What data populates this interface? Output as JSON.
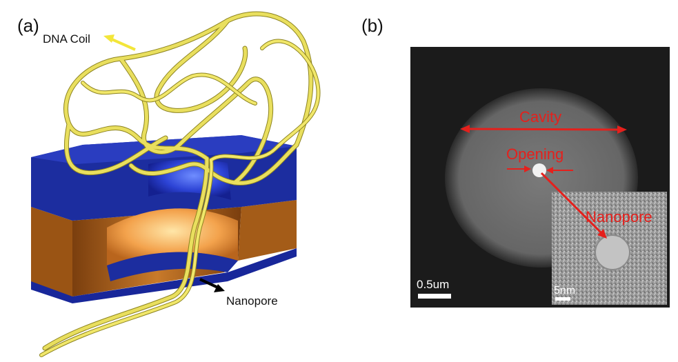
{
  "panel_a": {
    "label": "(a)",
    "dna_coil_label": "DNA Coil",
    "nanopore_label": "Nanopore",
    "colors": {
      "dna": "#e6dc5a",
      "membrane_top": "#1c2b9a",
      "membrane_bottom": "#b86a1f",
      "arrow_dna": "#f3e63a",
      "arrow_pore": "#000000"
    }
  },
  "panel_b": {
    "label": "(b)",
    "cavity_label": "Cavity",
    "opening_label": "Opening",
    "nanopore_label": "Nanopore",
    "scale_main": "0.5um",
    "scale_inset": "5nm",
    "colors": {
      "annotation": "#e5201c",
      "background": "#1c1c1c"
    }
  }
}
